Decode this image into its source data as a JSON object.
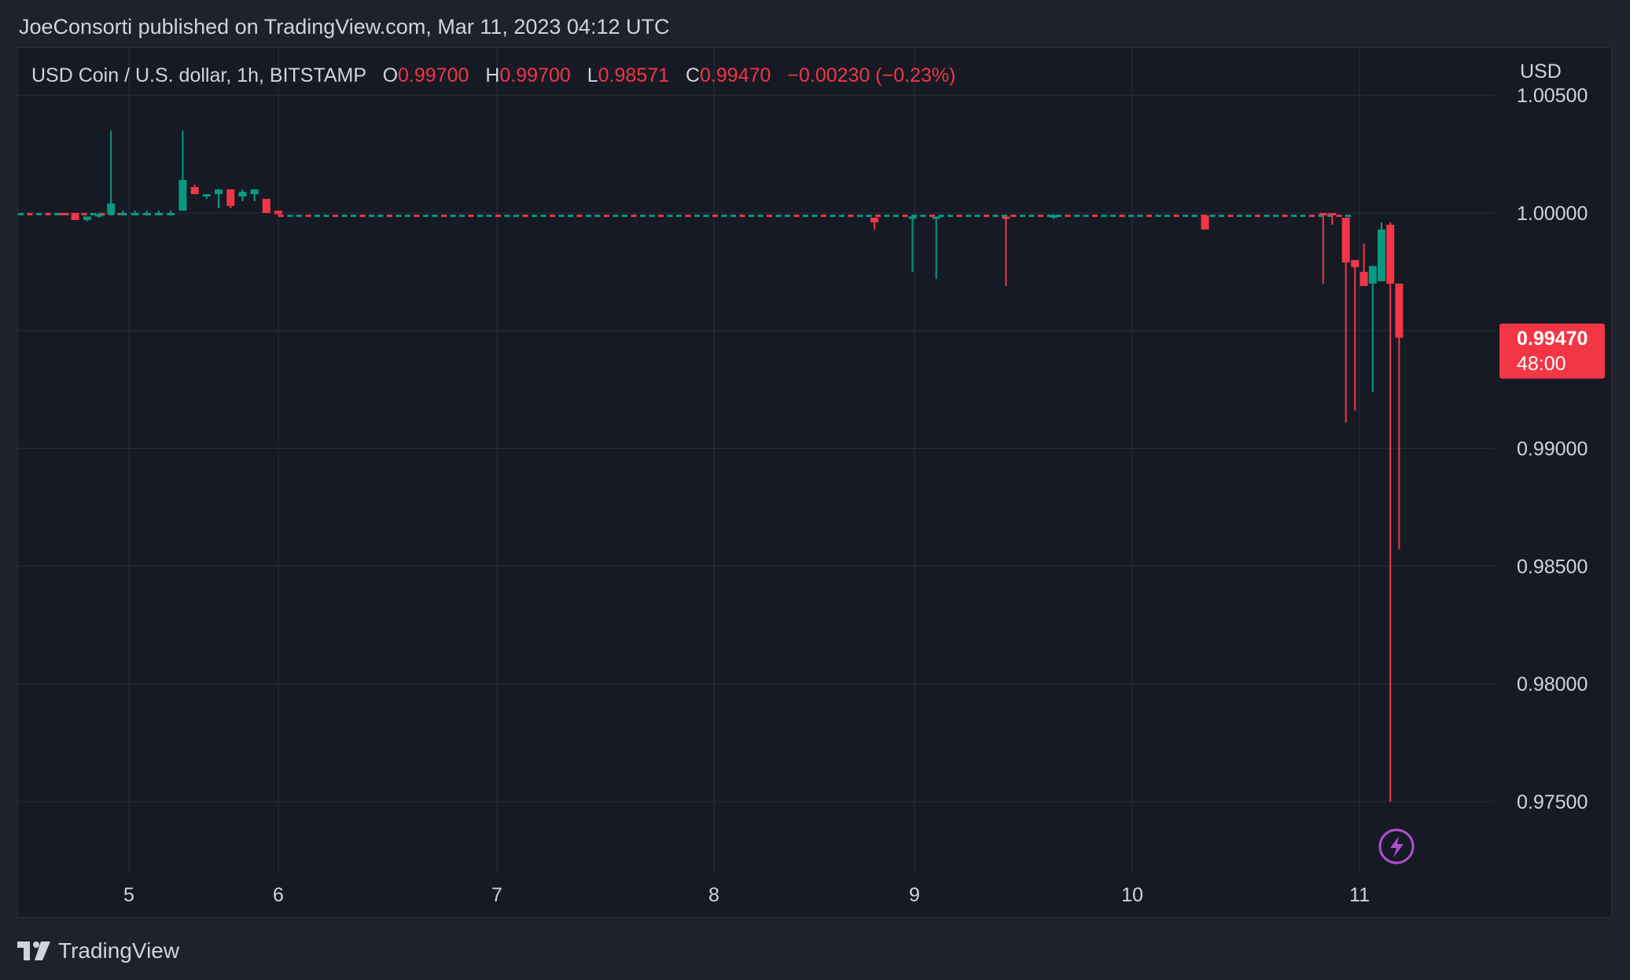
{
  "header": {
    "published_text": "JoeConsorti published on TradingView.com, Mar 11, 2023 04:12 UTC"
  },
  "legend": {
    "symbol": "USD Coin / U.S. dollar, 1h, BITSTAMP",
    "open_label": "O",
    "open_value": "0.99700",
    "high_label": "H",
    "high_value": "0.99700",
    "low_label": "L",
    "low_value": "0.98571",
    "close_label": "C",
    "close_value": "0.99470",
    "change": "−0.00230 (−0.23%)"
  },
  "footer": {
    "brand": "TradingView"
  },
  "colors": {
    "up": "#089981",
    "down": "#f23645",
    "grid": "#2a2e39",
    "badge": "#f23645",
    "lightning": "#b04fd0"
  },
  "chart_data": {
    "type": "candlestick",
    "currency_label": "USD",
    "ylim": [
      0.9727,
      1.0055
    ],
    "y_ticks": [
      "1.00500",
      "1.00000",
      "0.99000",
      "0.98500",
      "0.98000",
      "0.97500"
    ],
    "x_ticks": [
      {
        "label": "5",
        "x": 5.0
      },
      {
        "label": "6",
        "x": 6.0
      },
      {
        "label": "7",
        "x": 7.0
      },
      {
        "label": "8",
        "x": 8.0
      },
      {
        "label": "9",
        "x": 9.0
      },
      {
        "label": "10",
        "x": 10.0
      },
      {
        "label": "11",
        "x": 11.0
      }
    ],
    "last_price": {
      "value": 0.9947,
      "label": "0.99470",
      "countdown": "48:00"
    },
    "candles": [
      {
        "t": 4.56,
        "o": 1.0,
        "h": 1.0,
        "l": 0.99995,
        "c": 0.99995
      },
      {
        "t": 4.64,
        "o": 1.0,
        "h": 1.0,
        "l": 0.9997,
        "c": 0.9997
      },
      {
        "t": 4.72,
        "o": 0.9997,
        "h": 0.99985,
        "l": 0.99965,
        "c": 0.99985
      },
      {
        "t": 4.8,
        "o": 0.99985,
        "h": 1.0,
        "l": 0.9998,
        "c": 0.99995
      },
      {
        "t": 4.88,
        "o": 0.99995,
        "h": 1.0035,
        "l": 0.9999,
        "c": 1.0004
      },
      {
        "t": 4.96,
        "o": 1.0,
        "h": 1.0001,
        "l": 0.9999,
        "c": 1.0
      },
      {
        "t": 5.04,
        "o": 1.0,
        "h": 1.0001,
        "l": 0.9999,
        "c": 1.0
      },
      {
        "t": 5.12,
        "o": 1.0,
        "h": 1.0001,
        "l": 0.9999,
        "c": 1.0
      },
      {
        "t": 5.2,
        "o": 1.0,
        "h": 1.0001,
        "l": 0.9999,
        "c": 1.0
      },
      {
        "t": 5.28,
        "o": 1.0,
        "h": 1.0001,
        "l": 0.9999,
        "c": 1.0
      },
      {
        "t": 5.36,
        "o": 1.0001,
        "h": 1.0035,
        "l": 1.0001,
        "c": 1.0014
      },
      {
        "t": 5.44,
        "o": 1.0011,
        "h": 1.0012,
        "l": 1.0008,
        "c": 1.0008
      },
      {
        "t": 5.52,
        "o": 1.0007,
        "h": 1.0008,
        "l": 1.0006,
        "c": 1.0008
      },
      {
        "t": 5.6,
        "o": 1.0008,
        "h": 1.001,
        "l": 1.0002,
        "c": 1.001
      },
      {
        "t": 5.68,
        "o": 1.001,
        "h": 1.001,
        "l": 1.0002,
        "c": 1.0003
      },
      {
        "t": 5.76,
        "o": 1.0007,
        "h": 1.001,
        "l": 1.0005,
        "c": 1.0009
      },
      {
        "t": 5.84,
        "o": 1.0008,
        "h": 1.001,
        "l": 1.0005,
        "c": 1.001
      },
      {
        "t": 5.92,
        "o": 1.0006,
        "h": 1.0006,
        "l": 1.0,
        "c": 1.0
      },
      {
        "t": 6.0,
        "o": 1.0001,
        "h": 1.0001,
        "l": 0.9999,
        "c": 0.99995
      },
      {
        "t": 8.8,
        "o": 0.9998,
        "h": 0.9998,
        "l": 0.9993,
        "c": 0.9996
      },
      {
        "t": 9.1,
        "o": 0.9998,
        "h": 0.99985,
        "l": 0.9972,
        "c": 0.99985
      },
      {
        "t": 8.99,
        "o": 0.9998,
        "h": 0.99985,
        "l": 0.9975,
        "c": 0.99985
      },
      {
        "t": 9.42,
        "o": 0.99985,
        "h": 0.99985,
        "l": 0.9969,
        "c": 0.9998
      },
      {
        "t": 9.64,
        "o": 0.99985,
        "h": 0.99995,
        "l": 0.99975,
        "c": 0.9999
      },
      {
        "t": 10.32,
        "o": 0.9999,
        "h": 0.9999,
        "l": 0.9993,
        "c": 0.9993
      },
      {
        "t": 10.84,
        "o": 1.0,
        "h": 1.0,
        "l": 0.997,
        "c": 0.99995
      },
      {
        "t": 10.88,
        "o": 1.0,
        "h": 1.0,
        "l": 0.9995,
        "c": 0.9999
      },
      {
        "t": 10.94,
        "o": 0.9998,
        "h": 0.9998,
        "l": 0.9911,
        "c": 0.9979
      },
      {
        "t": 10.98,
        "o": 0.998,
        "h": 0.998,
        "l": 0.9916,
        "c": 0.9977
      },
      {
        "t": 11.02,
        "o": 0.9975,
        "h": 0.9987,
        "l": 0.9969,
        "c": 0.9969
      },
      {
        "t": 11.06,
        "o": 0.997,
        "h": 0.99775,
        "l": 0.9924,
        "c": 0.99775
      },
      {
        "t": 11.1,
        "o": 0.9971,
        "h": 0.9996,
        "l": 0.9971,
        "c": 0.9993
      },
      {
        "t": 11.14,
        "o": 0.9995,
        "h": 0.9996,
        "l": 0.975,
        "c": 0.997
      },
      {
        "t": 11.18,
        "o": 0.997,
        "h": 0.997,
        "l": 0.98571,
        "c": 0.9947
      }
    ],
    "flat_series": {
      "from": 6.0,
      "to": 10.95,
      "value": 0.99988
    }
  }
}
